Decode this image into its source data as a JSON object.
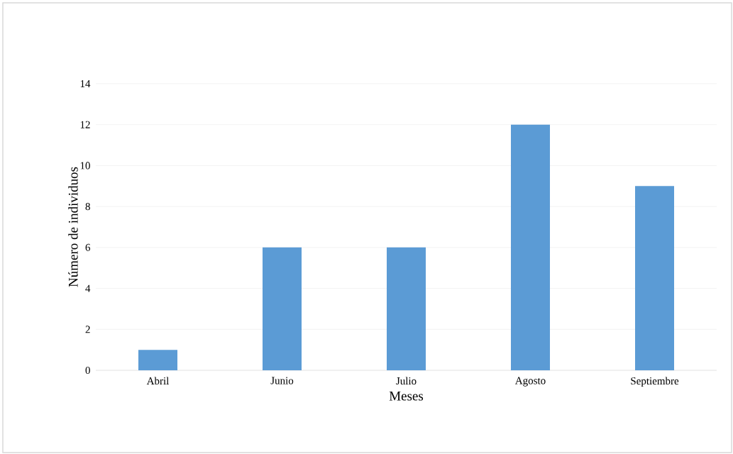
{
  "chart_data": {
    "type": "bar",
    "xlabel": "Meses",
    "ylabel": "Número de individuos",
    "categories": [
      "Abril",
      "Junio",
      "Julio",
      "Agosto",
      "Septiembre"
    ],
    "values": [
      1,
      6,
      6,
      12,
      9
    ],
    "color": "#5b9bd5",
    "ylim": [
      0,
      14
    ],
    "yticks": [
      0,
      2,
      4,
      6,
      8,
      10,
      12,
      14
    ],
    "grid": "y"
  }
}
